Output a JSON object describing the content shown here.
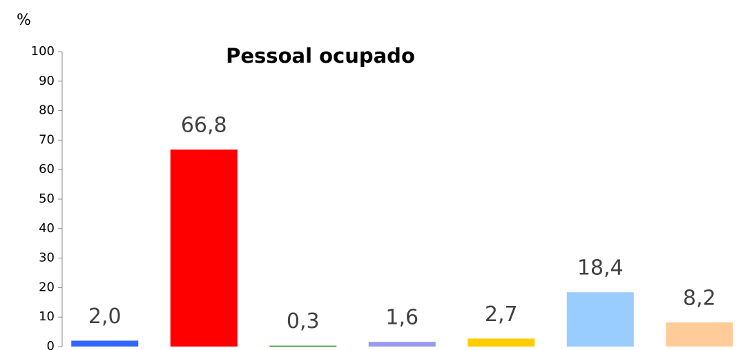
{
  "chart_data": {
    "type": "bar",
    "title": "Pessoal ocupado",
    "y_label": "%",
    "categories": [
      null,
      null,
      null,
      null,
      null,
      null,
      null
    ],
    "values": [
      2.0,
      66.8,
      0.3,
      1.6,
      2.7,
      18.4,
      8.2
    ],
    "value_labels": [
      "2,0",
      "66,8",
      "0,3",
      "1,6",
      "2,7",
      "18,4",
      "8,2"
    ],
    "colors": [
      "#3366ff",
      "#ff0000",
      "#008000",
      "#9999ee",
      "#ffcc00",
      "#99ccff",
      "#ffcc99"
    ],
    "ylim": [
      0,
      100
    ],
    "yticks": [
      0,
      10,
      20,
      30,
      40,
      50,
      60,
      70,
      80,
      90,
      100
    ],
    "grid": false
  }
}
